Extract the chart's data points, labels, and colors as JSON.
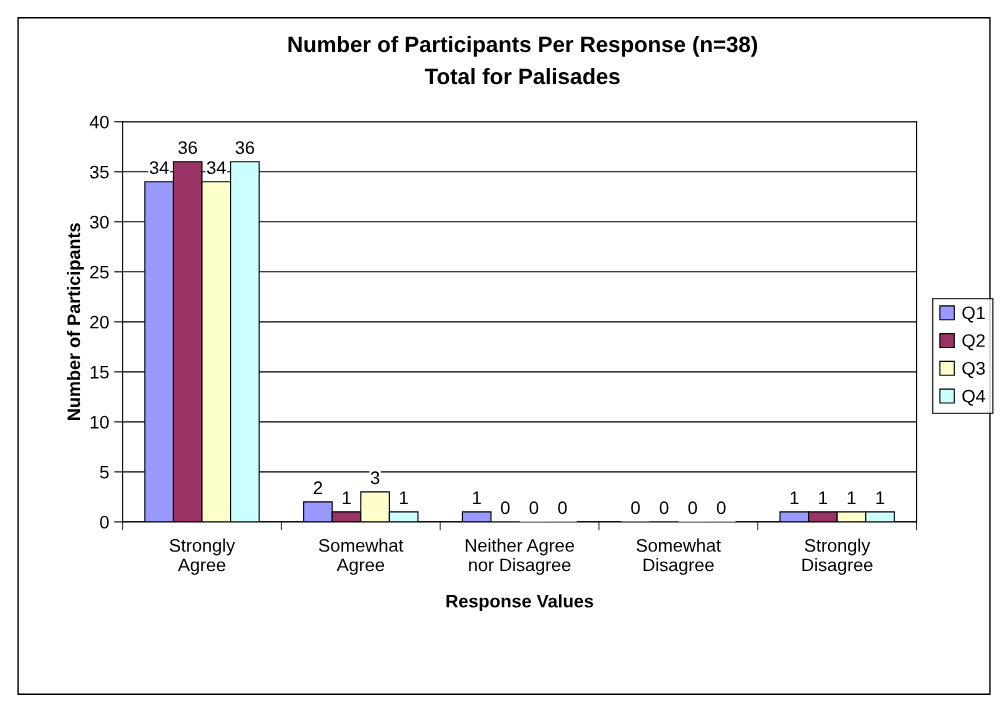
{
  "chart_data": {
    "type": "bar",
    "title": "Number of Participants Per Response (n=38)",
    "subtitle": "Total for Palisades",
    "xlabel": "Response Values",
    "ylabel": "Number of Participants",
    "categories": [
      "Strongly\nAgree",
      "Somewhat\nAgree",
      "Neither Agree\nnor Disagree",
      "Somewhat\nDisagree",
      "Strongly\nDisagree"
    ],
    "series": [
      {
        "name": "Q1",
        "color": "#9999ff",
        "values": [
          34,
          2,
          1,
          0,
          1
        ]
      },
      {
        "name": "Q2",
        "color": "#993366",
        "values": [
          36,
          1,
          0,
          0,
          1
        ]
      },
      {
        "name": "Q3",
        "color": "#ffffcc",
        "values": [
          34,
          3,
          0,
          0,
          1
        ]
      },
      {
        "name": "Q4",
        "color": "#ccffff",
        "values": [
          36,
          1,
          0,
          0,
          1
        ]
      }
    ],
    "ylim": [
      0,
      40
    ],
    "yticks": [
      0,
      5,
      10,
      15,
      20,
      25,
      30,
      35,
      40
    ],
    "grid": "y",
    "legend": "right",
    "data_labels": true
  }
}
